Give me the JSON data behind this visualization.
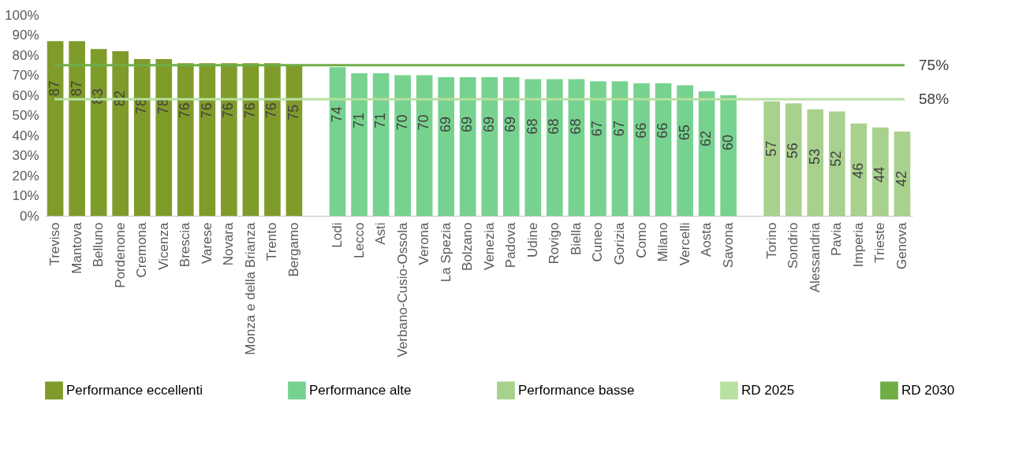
{
  "chart_data": {
    "type": "bar",
    "categories": [
      "Treviso",
      "Mantova",
      "Belluno",
      "Pordenone",
      "Cremona",
      "Vicenza",
      "Brescia",
      "Varese",
      "Novara",
      "Monza e della Brianza",
      "Trento",
      "Bergamo",
      null,
      "Lodi",
      "Lecco",
      "Asti",
      "Verbano-Cusio-Ossola",
      "Verona",
      "La Spezia",
      "Bolzano",
      "Venezia",
      "Padova",
      "Udine",
      "Rovigo",
      "Biella",
      "Cuneo",
      "Gorizia",
      "Como",
      "Milano",
      "Vercelli",
      "Aosta",
      "Savona",
      null,
      "Torino",
      "Sondrio",
      "Alessandria",
      "Pavia",
      "Imperia",
      "Trieste",
      "Genova"
    ],
    "series": [
      {
        "name": "Performance eccellenti",
        "color": "#7f9b2a",
        "values": [
          87,
          87,
          83,
          82,
          78,
          78,
          76,
          76,
          76,
          76,
          76,
          75,
          null,
          null,
          null,
          null,
          null,
          null,
          null,
          null,
          null,
          null,
          null,
          null,
          null,
          null,
          null,
          null,
          null,
          null,
          null,
          null,
          null,
          null,
          null,
          null,
          null,
          null,
          null,
          null
        ]
      },
      {
        "name": "Performance alte",
        "color": "#77d28f",
        "values": [
          null,
          null,
          null,
          null,
          null,
          null,
          null,
          null,
          null,
          null,
          null,
          null,
          null,
          74,
          71,
          71,
          70,
          70,
          69,
          69,
          69,
          69,
          68,
          68,
          68,
          67,
          67,
          66,
          66,
          65,
          62,
          60,
          null,
          null,
          null,
          null,
          null,
          null,
          null,
          null
        ]
      },
      {
        "name": "Performance basse",
        "color": "#a9d18e",
        "values": [
          null,
          null,
          null,
          null,
          null,
          null,
          null,
          null,
          null,
          null,
          null,
          null,
          null,
          null,
          null,
          null,
          null,
          null,
          null,
          null,
          null,
          null,
          null,
          null,
          null,
          null,
          null,
          null,
          null,
          null,
          null,
          null,
          null,
          57,
          56,
          53,
          52,
          46,
          44,
          42
        ]
      }
    ],
    "ref_lines": [
      {
        "axis": "y",
        "value": 58,
        "label": "RD 2025",
        "color": "#b8e0a0"
      },
      {
        "axis": "y",
        "value": 75,
        "label": "RD 2030",
        "color": "#70ad47"
      }
    ],
    "annotations": [
      "58%",
      "75%"
    ],
    "ylim": [
      0,
      100
    ],
    "yticks": [
      {
        "value": 0,
        "label": "0%"
      },
      {
        "value": 10,
        "label": "10%"
      },
      {
        "value": 20,
        "label": "20%"
      },
      {
        "value": 30,
        "label": "30%"
      },
      {
        "value": 40,
        "label": "40%"
      },
      {
        "value": 50,
        "label": "50%"
      },
      {
        "value": 60,
        "label": "60%"
      },
      {
        "value": 70,
        "label": "70%"
      },
      {
        "value": 80,
        "label": "80%"
      },
      {
        "value": 90,
        "label": "90%"
      },
      {
        "value": 100,
        "label": "100%"
      }
    ],
    "data_labels": true,
    "grid": false,
    "legend": "bottom"
  }
}
